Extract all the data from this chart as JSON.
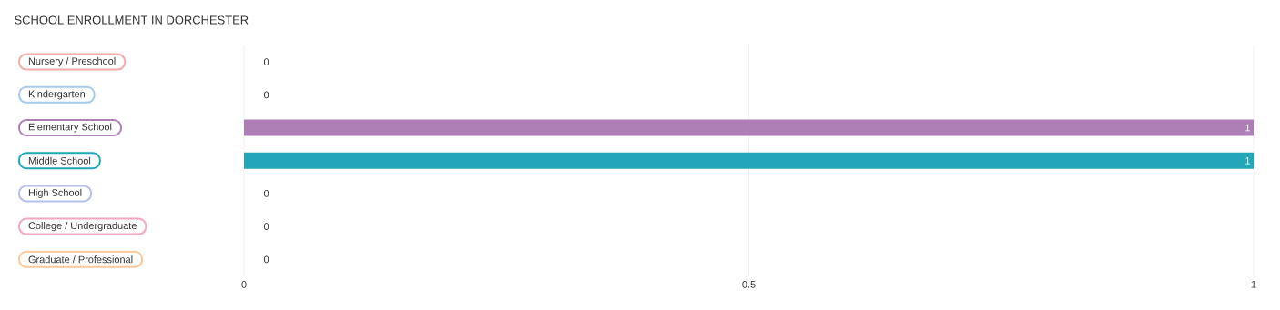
{
  "chart_data": {
    "type": "bar",
    "orientation": "horizontal",
    "title": "SCHOOL ENROLLMENT IN DORCHESTER",
    "categories": [
      "Nursery / Preschool",
      "Kindergarten",
      "Elementary School",
      "Middle School",
      "High School",
      "College / Undergraduate",
      "Graduate / Professional"
    ],
    "values": [
      0,
      0,
      1,
      1,
      0,
      0,
      0
    ],
    "colors": [
      "#f4aaa8",
      "#a9c8ee",
      "#ad7fb6",
      "#23a6b8",
      "#b6bfe9",
      "#f6a7c0",
      "#f9c99a"
    ],
    "xlim": [
      0,
      1
    ],
    "xticks": [
      0,
      0.5,
      1
    ],
    "grid": "x",
    "data_labels": true
  }
}
